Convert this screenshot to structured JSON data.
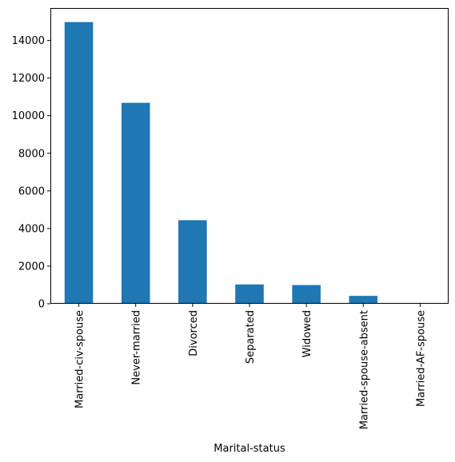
{
  "chart_data": {
    "type": "bar",
    "categories": [
      "Married-civ-spouse",
      "Never-married",
      "Divorced",
      "Separated",
      "Widowed",
      "Married-spouse-absent",
      "Married-AF-spouse"
    ],
    "values": [
      14976,
      10683,
      4443,
      1025,
      993,
      418,
      23
    ],
    "xlabel": "Marital-status",
    "ylabel": "",
    "ylim": [
      0,
      15724
    ],
    "yticks": [
      0,
      2000,
      4000,
      6000,
      8000,
      10000,
      12000,
      14000
    ],
    "ytick_labels": [
      "0",
      "2000",
      "4000",
      "6000",
      "8000",
      "10000",
      "12000",
      "14000"
    ],
    "grid": false,
    "bar_color": "#1f77b4"
  }
}
